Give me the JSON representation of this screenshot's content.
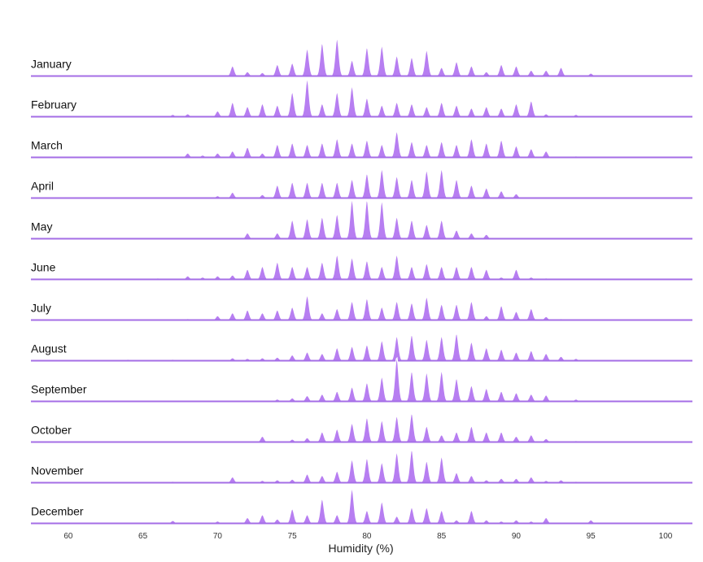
{
  "chart_data": {
    "type": "area",
    "subtype": "ridgeline",
    "xlabel": "Humidity (%)",
    "xlim": [
      57.5,
      101.8
    ],
    "x_ticks": [
      60,
      65,
      70,
      75,
      80,
      85,
      90,
      95,
      100
    ],
    "fill_color": "#b77ef1",
    "baseline_color": "#a46ee6",
    "separator_color": "#ffffff",
    "series": [
      {
        "name": "January",
        "peaks": [
          [
            71,
            0.35
          ],
          [
            72,
            0.15
          ],
          [
            73,
            0.12
          ],
          [
            74,
            0.4
          ],
          [
            75,
            0.45
          ],
          [
            76,
            0.95
          ],
          [
            77,
            1.15
          ],
          [
            78,
            1.3
          ],
          [
            79,
            0.55
          ],
          [
            80,
            1.0
          ],
          [
            81,
            1.05
          ],
          [
            82,
            0.7
          ],
          [
            83,
            0.65
          ],
          [
            84,
            0.9
          ],
          [
            85,
            0.3
          ],
          [
            86,
            0.5
          ],
          [
            87,
            0.35
          ],
          [
            88,
            0.15
          ],
          [
            89,
            0.4
          ],
          [
            90,
            0.35
          ],
          [
            91,
            0.2
          ],
          [
            92,
            0.2
          ],
          [
            93,
            0.3
          ],
          [
            95,
            0.1
          ]
        ]
      },
      {
        "name": "February",
        "peaks": [
          [
            67,
            0.08
          ],
          [
            68,
            0.1
          ],
          [
            70,
            0.2
          ],
          [
            71,
            0.5
          ],
          [
            72,
            0.35
          ],
          [
            73,
            0.45
          ],
          [
            74,
            0.4
          ],
          [
            75,
            0.85
          ],
          [
            76,
            1.3
          ],
          [
            77,
            0.45
          ],
          [
            78,
            0.85
          ],
          [
            79,
            1.05
          ],
          [
            80,
            0.65
          ],
          [
            81,
            0.4
          ],
          [
            82,
            0.5
          ],
          [
            83,
            0.45
          ],
          [
            84,
            0.35
          ],
          [
            85,
            0.5
          ],
          [
            86,
            0.4
          ],
          [
            87,
            0.3
          ],
          [
            88,
            0.35
          ],
          [
            89,
            0.3
          ],
          [
            90,
            0.45
          ],
          [
            91,
            0.55
          ],
          [
            92,
            0.1
          ],
          [
            94,
            0.08
          ]
        ]
      },
      {
        "name": "March",
        "peaks": [
          [
            68,
            0.15
          ],
          [
            69,
            0.08
          ],
          [
            70,
            0.15
          ],
          [
            71,
            0.22
          ],
          [
            72,
            0.35
          ],
          [
            73,
            0.15
          ],
          [
            74,
            0.45
          ],
          [
            75,
            0.5
          ],
          [
            76,
            0.45
          ],
          [
            77,
            0.5
          ],
          [
            78,
            0.65
          ],
          [
            79,
            0.5
          ],
          [
            80,
            0.6
          ],
          [
            81,
            0.45
          ],
          [
            82,
            0.9
          ],
          [
            83,
            0.55
          ],
          [
            84,
            0.45
          ],
          [
            85,
            0.55
          ],
          [
            86,
            0.45
          ],
          [
            87,
            0.65
          ],
          [
            88,
            0.5
          ],
          [
            89,
            0.6
          ],
          [
            90,
            0.4
          ],
          [
            91,
            0.3
          ],
          [
            92,
            0.22
          ],
          [
            94,
            0.05
          ]
        ]
      },
      {
        "name": "April",
        "peaks": [
          [
            70,
            0.08
          ],
          [
            71,
            0.2
          ],
          [
            73,
            0.12
          ],
          [
            74,
            0.45
          ],
          [
            75,
            0.55
          ],
          [
            76,
            0.55
          ],
          [
            77,
            0.55
          ],
          [
            78,
            0.55
          ],
          [
            79,
            0.65
          ],
          [
            80,
            0.85
          ],
          [
            81,
            1.0
          ],
          [
            82,
            0.75
          ],
          [
            83,
            0.65
          ],
          [
            84,
            0.95
          ],
          [
            85,
            1.0
          ],
          [
            86,
            0.65
          ],
          [
            87,
            0.45
          ],
          [
            88,
            0.35
          ],
          [
            89,
            0.25
          ],
          [
            90,
            0.15
          ]
        ]
      },
      {
        "name": "May",
        "peaks": [
          [
            72,
            0.2
          ],
          [
            74,
            0.2
          ],
          [
            75,
            0.65
          ],
          [
            76,
            0.7
          ],
          [
            77,
            0.75
          ],
          [
            78,
            0.85
          ],
          [
            79,
            1.35
          ],
          [
            80,
            1.35
          ],
          [
            81,
            1.3
          ],
          [
            82,
            0.75
          ],
          [
            83,
            0.65
          ],
          [
            84,
            0.5
          ],
          [
            85,
            0.65
          ],
          [
            86,
            0.3
          ],
          [
            87,
            0.2
          ],
          [
            88,
            0.15
          ]
        ]
      },
      {
        "name": "June",
        "peaks": [
          [
            66,
            0.05
          ],
          [
            68,
            0.12
          ],
          [
            69,
            0.08
          ],
          [
            70,
            0.12
          ],
          [
            71,
            0.15
          ],
          [
            72,
            0.35
          ],
          [
            73,
            0.45
          ],
          [
            74,
            0.6
          ],
          [
            75,
            0.45
          ],
          [
            76,
            0.45
          ],
          [
            77,
            0.6
          ],
          [
            78,
            0.85
          ],
          [
            79,
            0.75
          ],
          [
            80,
            0.65
          ],
          [
            81,
            0.45
          ],
          [
            82,
            0.85
          ],
          [
            83,
            0.45
          ],
          [
            84,
            0.55
          ],
          [
            85,
            0.45
          ],
          [
            86,
            0.45
          ],
          [
            87,
            0.45
          ],
          [
            88,
            0.35
          ],
          [
            89,
            0.08
          ],
          [
            90,
            0.35
          ],
          [
            91,
            0.08
          ],
          [
            92,
            0.05
          ]
        ]
      },
      {
        "name": "July",
        "peaks": [
          [
            68,
            0.05
          ],
          [
            70,
            0.15
          ],
          [
            71,
            0.25
          ],
          [
            72,
            0.35
          ],
          [
            73,
            0.25
          ],
          [
            74,
            0.35
          ],
          [
            75,
            0.45
          ],
          [
            76,
            0.85
          ],
          [
            77,
            0.25
          ],
          [
            78,
            0.4
          ],
          [
            79,
            0.65
          ],
          [
            80,
            0.75
          ],
          [
            81,
            0.45
          ],
          [
            82,
            0.65
          ],
          [
            83,
            0.6
          ],
          [
            84,
            0.8
          ],
          [
            85,
            0.55
          ],
          [
            86,
            0.55
          ],
          [
            87,
            0.65
          ],
          [
            88,
            0.15
          ],
          [
            89,
            0.5
          ],
          [
            90,
            0.3
          ],
          [
            91,
            0.4
          ],
          [
            92,
            0.12
          ],
          [
            93,
            0.05
          ]
        ]
      },
      {
        "name": "August",
        "peaks": [
          [
            64,
            0.05
          ],
          [
            67,
            0.05
          ],
          [
            71,
            0.1
          ],
          [
            72,
            0.08
          ],
          [
            73,
            0.1
          ],
          [
            74,
            0.12
          ],
          [
            75,
            0.2
          ],
          [
            76,
            0.3
          ],
          [
            77,
            0.25
          ],
          [
            78,
            0.45
          ],
          [
            79,
            0.5
          ],
          [
            80,
            0.55
          ],
          [
            81,
            0.7
          ],
          [
            82,
            0.85
          ],
          [
            83,
            0.9
          ],
          [
            84,
            0.75
          ],
          [
            85,
            0.85
          ],
          [
            86,
            0.95
          ],
          [
            87,
            0.65
          ],
          [
            88,
            0.45
          ],
          [
            89,
            0.4
          ],
          [
            90,
            0.3
          ],
          [
            91,
            0.35
          ],
          [
            92,
            0.25
          ],
          [
            93,
            0.15
          ],
          [
            94,
            0.08
          ]
        ]
      },
      {
        "name": "September",
        "peaks": [
          [
            74,
            0.08
          ],
          [
            75,
            0.12
          ],
          [
            76,
            0.2
          ],
          [
            77,
            0.25
          ],
          [
            78,
            0.35
          ],
          [
            79,
            0.5
          ],
          [
            80,
            0.65
          ],
          [
            81,
            0.85
          ],
          [
            82,
            1.5
          ],
          [
            83,
            1.05
          ],
          [
            84,
            1.0
          ],
          [
            85,
            1.05
          ],
          [
            86,
            0.8
          ],
          [
            87,
            0.55
          ],
          [
            88,
            0.45
          ],
          [
            89,
            0.35
          ],
          [
            90,
            0.3
          ],
          [
            91,
            0.25
          ],
          [
            92,
            0.22
          ],
          [
            94,
            0.08
          ]
        ]
      },
      {
        "name": "October",
        "peaks": [
          [
            73,
            0.2
          ],
          [
            75,
            0.1
          ],
          [
            76,
            0.15
          ],
          [
            77,
            0.35
          ],
          [
            78,
            0.45
          ],
          [
            79,
            0.65
          ],
          [
            80,
            0.85
          ],
          [
            81,
            0.75
          ],
          [
            82,
            0.9
          ],
          [
            83,
            1.0
          ],
          [
            84,
            0.55
          ],
          [
            85,
            0.25
          ],
          [
            86,
            0.35
          ],
          [
            87,
            0.55
          ],
          [
            88,
            0.35
          ],
          [
            89,
            0.35
          ],
          [
            90,
            0.2
          ],
          [
            91,
            0.25
          ],
          [
            92,
            0.12
          ],
          [
            94,
            0.05
          ]
        ]
      },
      {
        "name": "November",
        "peaks": [
          [
            67,
            0.05
          ],
          [
            71,
            0.2
          ],
          [
            73,
            0.08
          ],
          [
            74,
            0.1
          ],
          [
            75,
            0.12
          ],
          [
            76,
            0.3
          ],
          [
            77,
            0.25
          ],
          [
            78,
            0.4
          ],
          [
            79,
            0.8
          ],
          [
            80,
            0.85
          ],
          [
            81,
            0.7
          ],
          [
            82,
            1.05
          ],
          [
            83,
            1.15
          ],
          [
            84,
            0.75
          ],
          [
            85,
            0.9
          ],
          [
            86,
            0.35
          ],
          [
            87,
            0.25
          ],
          [
            88,
            0.1
          ],
          [
            89,
            0.15
          ],
          [
            90,
            0.15
          ],
          [
            91,
            0.2
          ],
          [
            92,
            0.08
          ],
          [
            93,
            0.1
          ],
          [
            94,
            0.05
          ]
        ]
      },
      {
        "name": "December",
        "peaks": [
          [
            64,
            0.03
          ],
          [
            67,
            0.1
          ],
          [
            70,
            0.08
          ],
          [
            72,
            0.2
          ],
          [
            73,
            0.3
          ],
          [
            74,
            0.15
          ],
          [
            75,
            0.5
          ],
          [
            76,
            0.3
          ],
          [
            77,
            0.85
          ],
          [
            78,
            0.3
          ],
          [
            79,
            1.2
          ],
          [
            80,
            0.45
          ],
          [
            81,
            0.75
          ],
          [
            82,
            0.25
          ],
          [
            83,
            0.55
          ],
          [
            84,
            0.55
          ],
          [
            85,
            0.45
          ],
          [
            86,
            0.12
          ],
          [
            87,
            0.45
          ],
          [
            88,
            0.12
          ],
          [
            89,
            0.08
          ],
          [
            90,
            0.12
          ],
          [
            91,
            0.08
          ],
          [
            92,
            0.2
          ],
          [
            95,
            0.12
          ]
        ]
      }
    ]
  }
}
